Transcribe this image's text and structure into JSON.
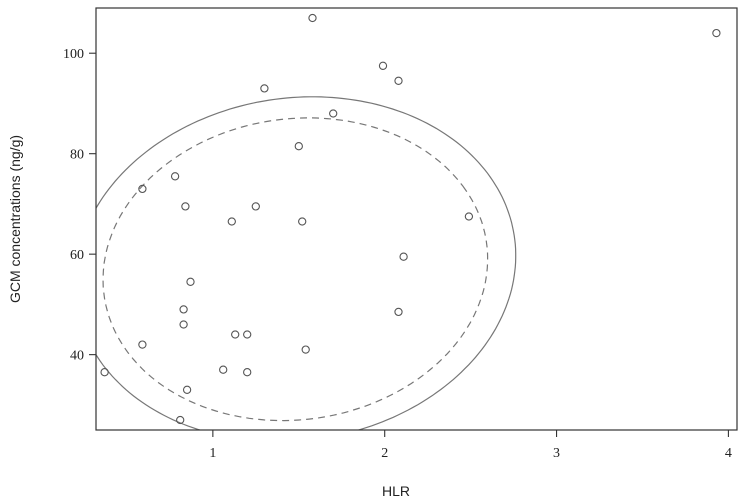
{
  "chart_data": {
    "type": "scatter",
    "xlabel": "HLR",
    "ylabel": "GCM concentrations (ng/g)",
    "xlim": [
      0.32,
      4.05
    ],
    "ylim": [
      25,
      109
    ],
    "x_ticks": [
      1,
      2,
      3,
      4
    ],
    "y_ticks": [
      40,
      60,
      80,
      100
    ],
    "grid": false,
    "points": [
      {
        "x": 0.37,
        "y": 36.5
      },
      {
        "x": 0.59,
        "y": 73
      },
      {
        "x": 0.59,
        "y": 42
      },
      {
        "x": 0.78,
        "y": 75.5
      },
      {
        "x": 0.81,
        "y": 27
      },
      {
        "x": 0.83,
        "y": 49
      },
      {
        "x": 0.83,
        "y": 46
      },
      {
        "x": 0.84,
        "y": 69.5
      },
      {
        "x": 0.85,
        "y": 33
      },
      {
        "x": 0.87,
        "y": 54.5
      },
      {
        "x": 1.06,
        "y": 37
      },
      {
        "x": 1.11,
        "y": 66.5
      },
      {
        "x": 1.13,
        "y": 44
      },
      {
        "x": 1.2,
        "y": 44
      },
      {
        "x": 1.2,
        "y": 36.5
      },
      {
        "x": 1.25,
        "y": 69.5
      },
      {
        "x": 1.3,
        "y": 93
      },
      {
        "x": 1.5,
        "y": 81.5
      },
      {
        "x": 1.52,
        "y": 66.5
      },
      {
        "x": 1.54,
        "y": 41
      },
      {
        "x": 1.58,
        "y": 107
      },
      {
        "x": 1.7,
        "y": 88
      },
      {
        "x": 1.99,
        "y": 97.5
      },
      {
        "x": 2.08,
        "y": 94.5
      },
      {
        "x": 2.08,
        "y": 48.5
      },
      {
        "x": 2.11,
        "y": 59.5
      },
      {
        "x": 2.49,
        "y": 67.5
      },
      {
        "x": 3.93,
        "y": 104
      }
    ],
    "ellipses": [
      {
        "style": "dashed",
        "center": [
          1.48,
          57
        ],
        "semi_axis_x": 1.14,
        "semi_axis_y": 29.5,
        "rotation_deg": 30
      },
      {
        "style": "solid",
        "center": [
          1.48,
          57
        ],
        "semi_axis_x": 1.31,
        "semi_axis_y": 33.5,
        "rotation_deg": 30
      }
    ]
  }
}
